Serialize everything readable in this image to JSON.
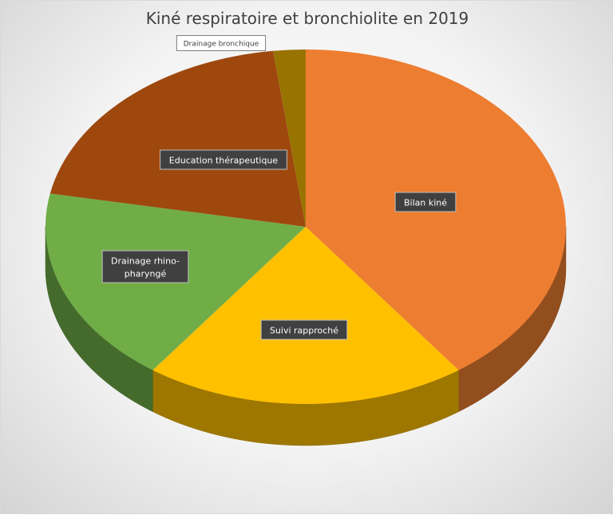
{
  "chart_data": {
    "type": "pie",
    "title": "Kiné respiratoire et bronchiolite en 2019",
    "categories": [
      "Bilan kiné",
      "Suivi rapproché",
      "Drainage rhino-pharyngé",
      "Education thérapeutique",
      "Drainage bronchique"
    ],
    "values": [
      40,
      20,
      18,
      20,
      2
    ],
    "colors": [
      "#ed7d31",
      "#ffc000",
      "#70ad47",
      "#9e480e",
      "#997300"
    ],
    "three_d": true,
    "legend": "none",
    "data_labels": "category-names"
  }
}
